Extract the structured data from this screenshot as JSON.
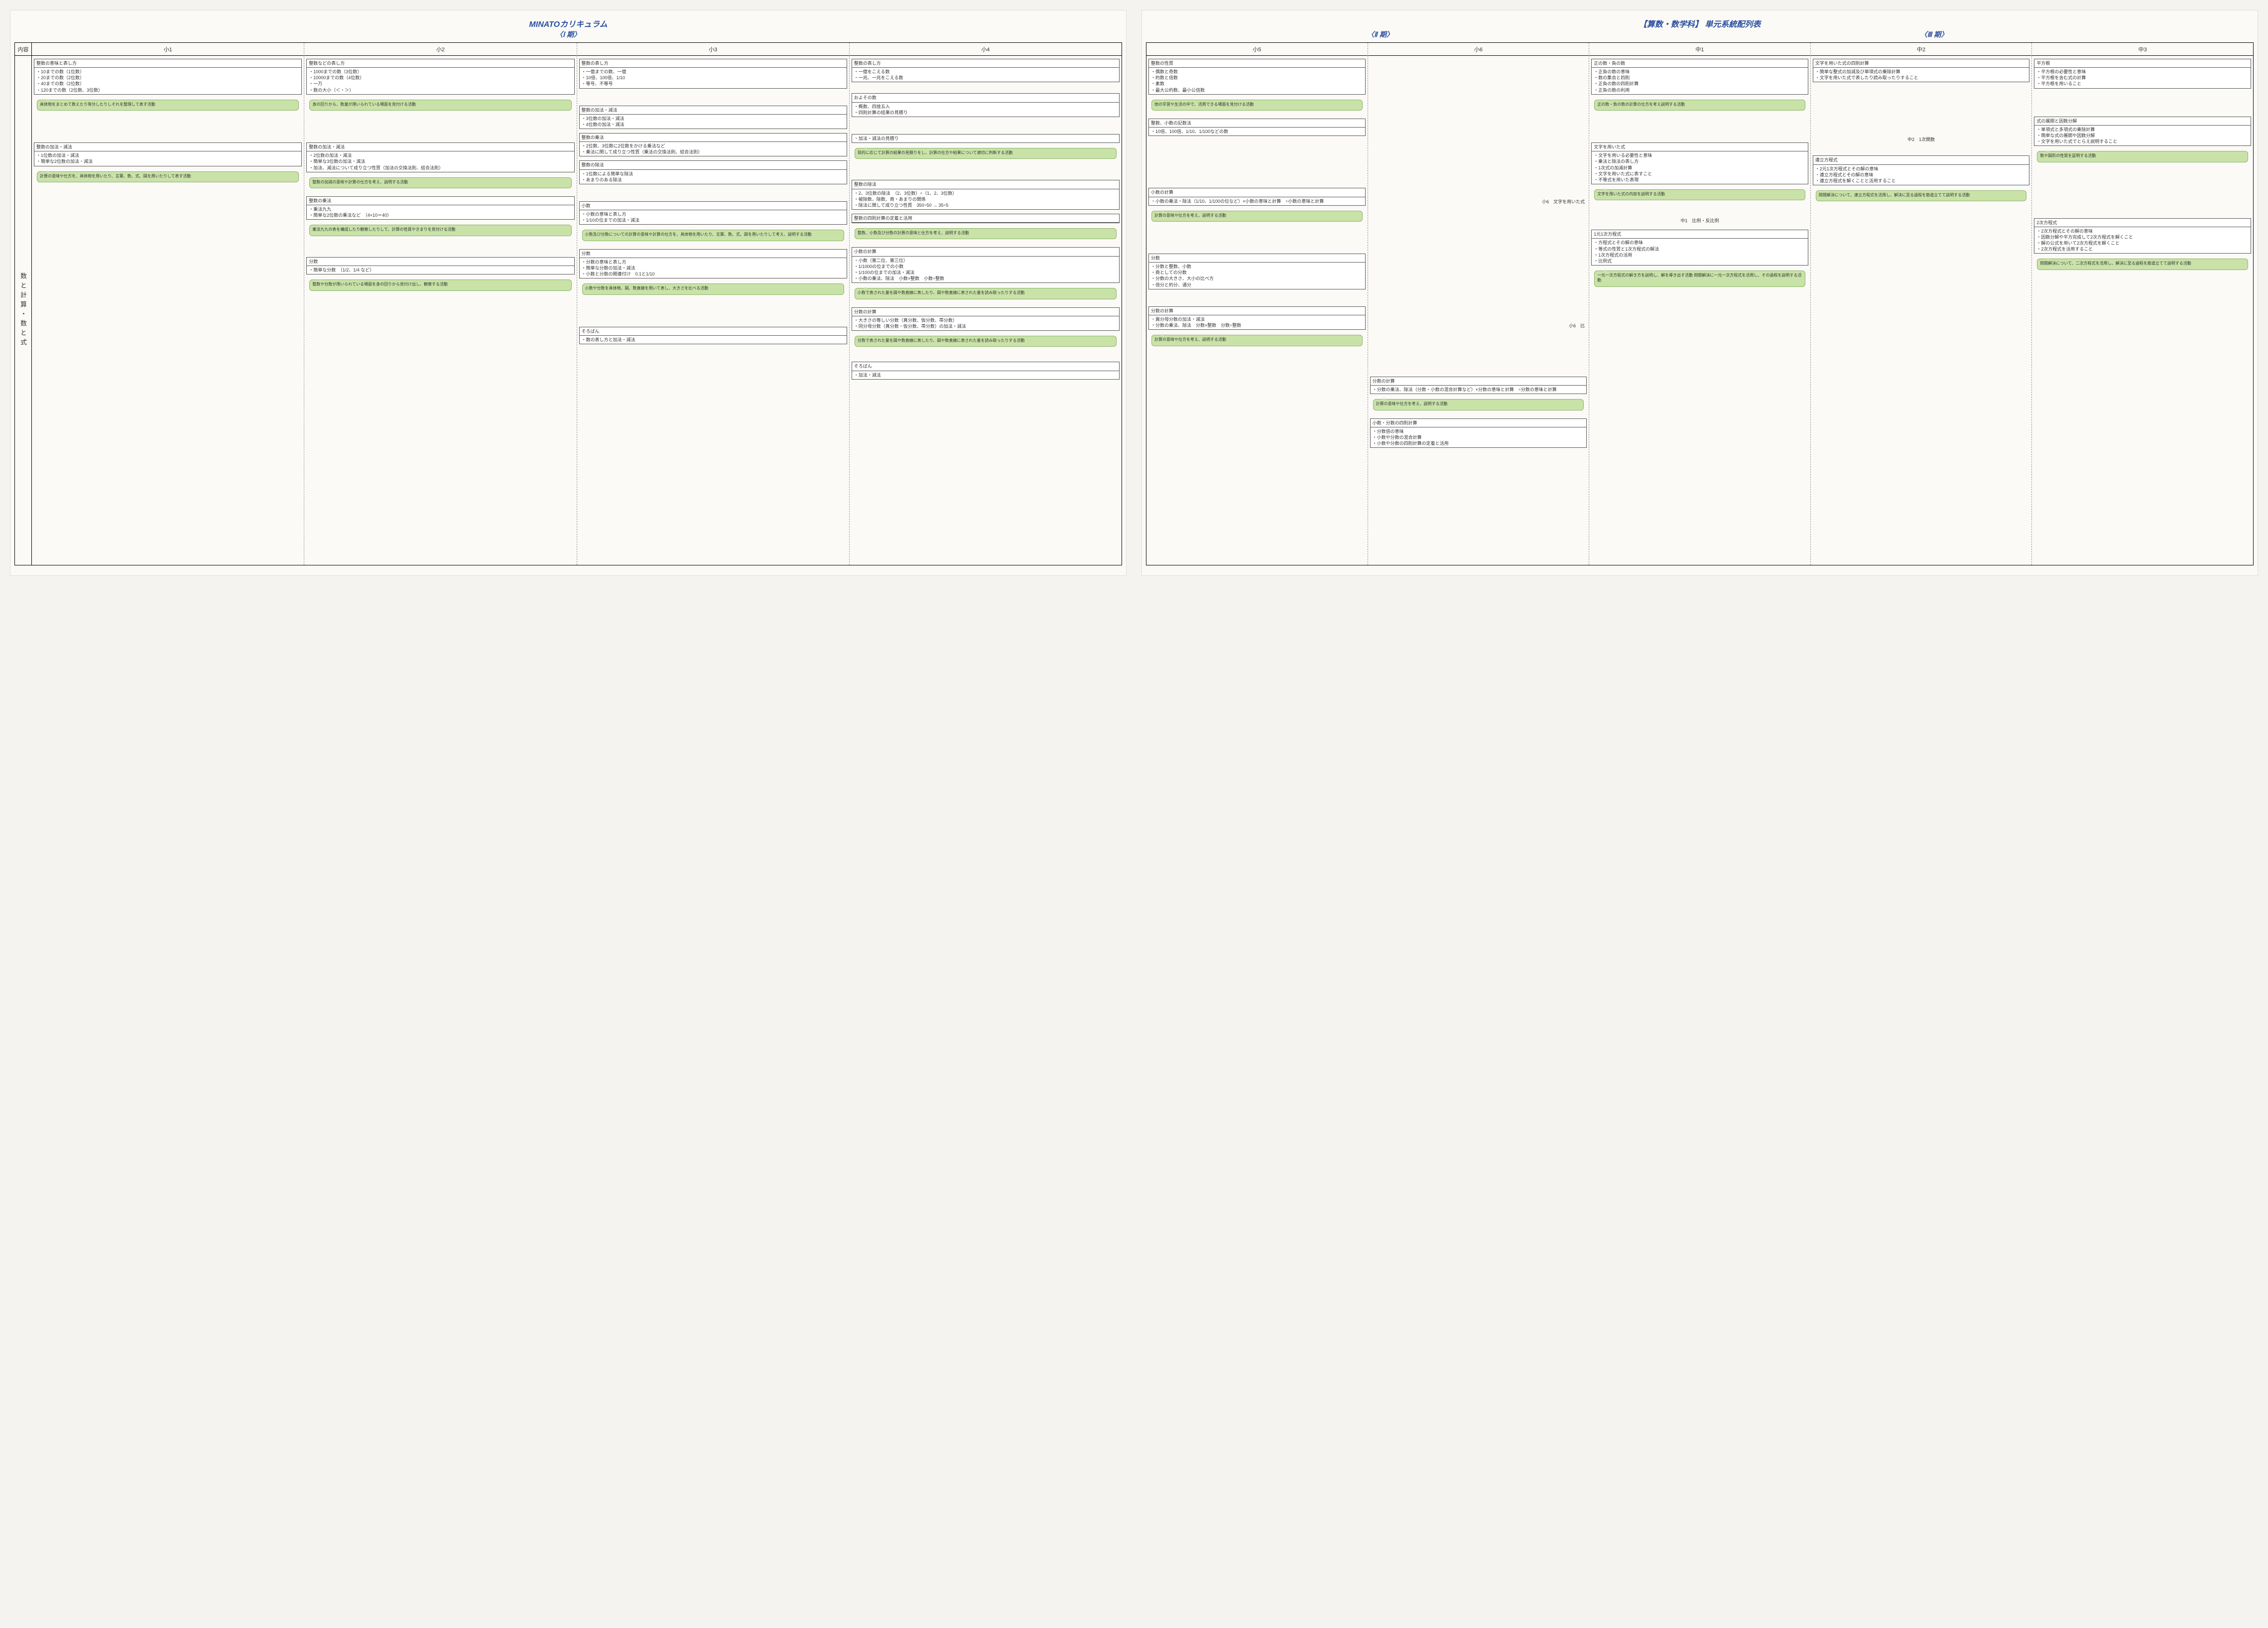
{
  "left_page": {
    "title": "MINATOカリキュラム",
    "period_label": "〈Ⅰ 期〉",
    "row_header_label": "内容",
    "row_label": "数と計算・数と式",
    "columns": [
      "小1",
      "小2",
      "小3",
      "小4"
    ]
  },
  "right_page": {
    "title": "【算数・数学科】 単元系統配列表",
    "period_labels": [
      "〈Ⅱ 期〉",
      "〈Ⅲ 期〉"
    ],
    "columns": [
      "小5",
      "小6",
      "中1",
      "中2",
      "中3"
    ]
  },
  "colors": {
    "callout_bg": "#c9e2a8",
    "callout_border": "#8bb368",
    "title_color": "#2a4fa0",
    "page_bg": "#fbfaf7",
    "border": "#000000"
  },
  "units": {
    "s1": [
      {
        "title": "整数の意味と表し方",
        "items": [
          "10までの数（1位数）",
          "20までの数（2位数）",
          "40までの数（2位数）",
          "120までの数（2位数、3位数）"
        ],
        "callout": "具体物をまとめて数えたり等分したりしそれを整理して表す活動"
      },
      {
        "title": "整数の加法・減法",
        "items": [
          "1位数の加法・減法",
          "簡単な2位数の加法・減法"
        ],
        "callout": "計算の意味や仕方を、具体物を用いたり、言葉、数、式、図を用いたりして表す活動",
        "spacer_before": "lg"
      }
    ],
    "s2": [
      {
        "title": "整数などの表し方",
        "items": [
          "1000までの数（3位数）",
          "10000までの数（4位数）",
          "一万",
          "数の大小（＜・＞）"
        ],
        "callout": "身の回りから、数量が用いられている場面を見付ける活動"
      },
      {
        "title": "整数の加法・減法",
        "items": [
          "2位数の加法・減法",
          "簡単な3位数の加法・減法",
          "加法、減法について成り立つ性質（加法の交換法則、結合法則）"
        ],
        "callout": "整数の加減の意味や計算の仕方を考え、説明する活動",
        "spacer_before": "lg"
      },
      {
        "title": "整数の乗法",
        "items": [
          "乗法九九",
          "簡単な2位数の乗法など　（4×10＝40）"
        ],
        "callout": "乗法九九の表を構成したり観察したりして、計算の性質やきまりを見付ける活動"
      },
      {
        "title": "分数",
        "items": [
          "簡単な分数　（1/2、1/4 など）"
        ],
        "callout": "整数や分数が用いられている場面を身の回りから見付け出し、観察する活動",
        "spacer_before": "md"
      }
    ],
    "s3": [
      {
        "title": "整数の表し方",
        "items": [
          "一億までの数、一億",
          "10倍、100倍、1/10",
          "等号、不等号"
        ]
      },
      {
        "title": "整数の加法・減法",
        "items": [
          "3位数の加法・減法",
          "4位数の加法・減法"
        ],
        "spacer_before": "md"
      },
      {
        "title": "整数の乗法",
        "items": [
          "2位数、3位数に2位数をかける乗法など",
          "乗法に関して成り立つ性質（乗法の交換法則、結合法則）"
        ]
      },
      {
        "title": "整数の除法",
        "items": [
          "1位数による簡単な除法",
          "あまりのある除法"
        ]
      },
      {
        "title": "小数",
        "items": [
          "小数の意味と表し方",
          "1/10の位までの加法・減法"
        ],
        "callout": "小数及び分数についての計算の意味や計算の仕方を、具体物を用いたり、言葉、数、式、図を用いたりして考え、説明する活動",
        "spacer_before": "md"
      },
      {
        "title": "分数",
        "items": [
          "分数の意味と表し方",
          "簡単な分数の加法・減法",
          "小数と分数の関連付け　0.1と1/10"
        ],
        "callout": "小数や分数を具体物、図、数直線を用いて表し、大きさを比べる活動"
      },
      {
        "title": "そろばん",
        "items": [
          "数の表し方と加法・減法"
        ],
        "spacer_before": "lg"
      }
    ],
    "s4": [
      {
        "title": "整数の表し方",
        "items": [
          "一億をこえる数",
          "一兆、一兆をこえる数"
        ]
      },
      {
        "title": "およその数",
        "items": [
          "概数、四捨五入",
          "四則計算の結果の見積り"
        ],
        "spacer_before": "sm"
      },
      {
        "title": "",
        "headless": true,
        "items": [
          "加法・減法の見積り"
        ],
        "callout": "目的に応じて計算の結果の見積りをし、計算の仕方や結果について適切に判断する活動",
        "spacer_before": "md"
      },
      {
        "title": "整数の除法",
        "items": [
          "2、3位数の除法　（2、3位数）÷（1、2、3位数）",
          "被除数、除数、商・あまりの関係",
          "除法に関して成り立つ性質　350÷50 → 35÷5"
        ],
        "spacer_before": "md"
      },
      {
        "title": "整数の四則計算の定着と活用",
        "callout": "整数、小数及び分数の計算の意味と仕方を考え、説明する活動"
      },
      {
        "title": "小数の計算",
        "items": [
          "小数（第二位、第三位）",
          "1/1000の位までの小数",
          "1/100の位までの加法・減法",
          "小数の乗法、除法　小数×整数　小数÷整数"
        ],
        "callout": "小数で表された量を図や数直線に表したり、図や数直線に表された量を読み取ったりする活動"
      },
      {
        "title": "分数の計算",
        "items": [
          "大きさの等しい分数（真分数、仮分数、帯分数）",
          "同分母分数（真分数・仮分数、帯分数）の加法・減法"
        ],
        "callout": "分数で表された量を図や数直線に表したり、図や数直線に表された量を読み取ったりする活動"
      },
      {
        "title": "そろばん",
        "items": [
          "加法・減法"
        ],
        "spacer_before": "sm"
      }
    ],
    "s5": [
      {
        "title": "整数の性質",
        "items": [
          "偶数と奇数",
          "約数と倍数",
          "素数",
          "最大公約数、最小公倍数"
        ],
        "callout": "他の学習や生活の中で、活用できる場面を見付ける活動"
      },
      {
        "title": "整数、小数の記数法",
        "items": [
          "10倍、100倍、1/10、1/100などの数"
        ]
      },
      {
        "title": "小数の計算",
        "items": [
          "小数の乗法・除法（1/10、1/100の位など）×小数の意味と計算　÷小数の意味と計算"
        ],
        "callout": "計算の意味や仕方を考え、説明する活動",
        "spacer_before": "lg",
        "spacer_before2": "lg"
      },
      {
        "title": "分数",
        "items": [
          "分数と整数、小数",
          "商としての分数",
          "分数の大きさ、大小の比べ方",
          "倍分と約分、通分"
        ],
        "spacer_before": "lg"
      },
      {
        "title": "分数の計算",
        "items": [
          "異分母分数の加法・減法",
          "分数の乗法、除法　分数×整数　分数÷整数"
        ],
        "callout": "計算の意味や仕方を考え、説明する活動",
        "spacer_before": "md"
      }
    ],
    "s6": [
      {
        "side_label_1": "小6　文字を用いた式",
        "side_label_2": "小6　比",
        "title": "分数の計算",
        "items": [
          "分数の乗法、除法（分数・小数の混合計算など）×分数の意味と計算　÷分数の意味と計算"
        ],
        "callout": "計算の意味や仕方を考え、説明する活動"
      },
      {
        "title": "小数・分数の四則計算",
        "items": [
          "分数倍の意味",
          "小数や分数の混合計算",
          "小数や分数の四則計算の定着と活用"
        ]
      }
    ],
    "c1": [
      {
        "title": "正の数・負の数",
        "items": [
          "正負の数の意味",
          "数の集合と四則",
          "正負の数の四則計算",
          "正負の数の利用"
        ],
        "callout": "正の数・負の数の計算の仕方を考え説明する活動"
      },
      {
        "title": "文字を用いた式",
        "items": [
          "文字を用いる必要性と意味",
          "乗法と除法の表し方",
          "1次式の加減計算",
          "文字を用いた式に表すこと",
          "不等式を用いた表現"
        ],
        "callout": "文字を用いた式の内容を説明する活動",
        "spacer_before": "lg"
      },
      {
        "title": "",
        "headless": true,
        "items": [],
        "plain": "中1　比例・反比例",
        "spacer_before": "sm"
      },
      {
        "title": "1元1次方程式",
        "items": [
          "方程式とその解の意味",
          "等式の性質と1次方程式の解法",
          "1次方程式の活用",
          "比例式"
        ],
        "callout": "一元一次方程式の解き方を説明し、解を導き出す活動\n問題解決に一元一次方程式を活用し、その過程を説明する活動"
      }
    ],
    "c2": [
      {
        "title": "文字を用いた式の四則計算",
        "items": [
          "簡単な整式の加減及び単項式の乗除計算",
          "文字を用いた式で表したり読み取ったりすること"
        ]
      },
      {
        "title": "",
        "headless": true,
        "items": [],
        "plain": "中2　1次関数",
        "spacer_before": "lg",
        "spacer_before2": "lg"
      },
      {
        "title": "連立方程式",
        "items": [
          "2元1次方程式とその解の意味",
          "連立方程式とその解の意味",
          "連立方程式を解くことと活用すること"
        ],
        "callout": "問題解決について、連立方程式を活用し、解決に至る過程を筋道立てて説明する活動",
        "spacer_before": "sm"
      }
    ],
    "c3": [
      {
        "title": "平方根",
        "items": [
          "平方根の必要性と意味",
          "平方根を含む式の計算",
          "平方根を用いること"
        ]
      },
      {
        "title": "式の展開と因数分解",
        "items": [
          "単項式と多項式の乗除計算",
          "簡単な式の展開や因数分解",
          "文字を用いた式でとらえ説明すること"
        ],
        "callout": "数や図形の性質を証明する活動",
        "spacer_before": "lg"
      },
      {
        "title": "2次方程式",
        "items": [
          "2次方程式とその解の意味",
          "因数分解や平方完成して2次方程式を解くこと",
          "解の公式を用いて2次方程式を解くこと",
          "2次方程式を活用すること"
        ],
        "callout": "問題解決について、二次方程式を活用し、解決に至る過程を筋道立てて説明する活動",
        "spacer_before": "lg",
        "spacer_before2": "lg"
      }
    ]
  }
}
